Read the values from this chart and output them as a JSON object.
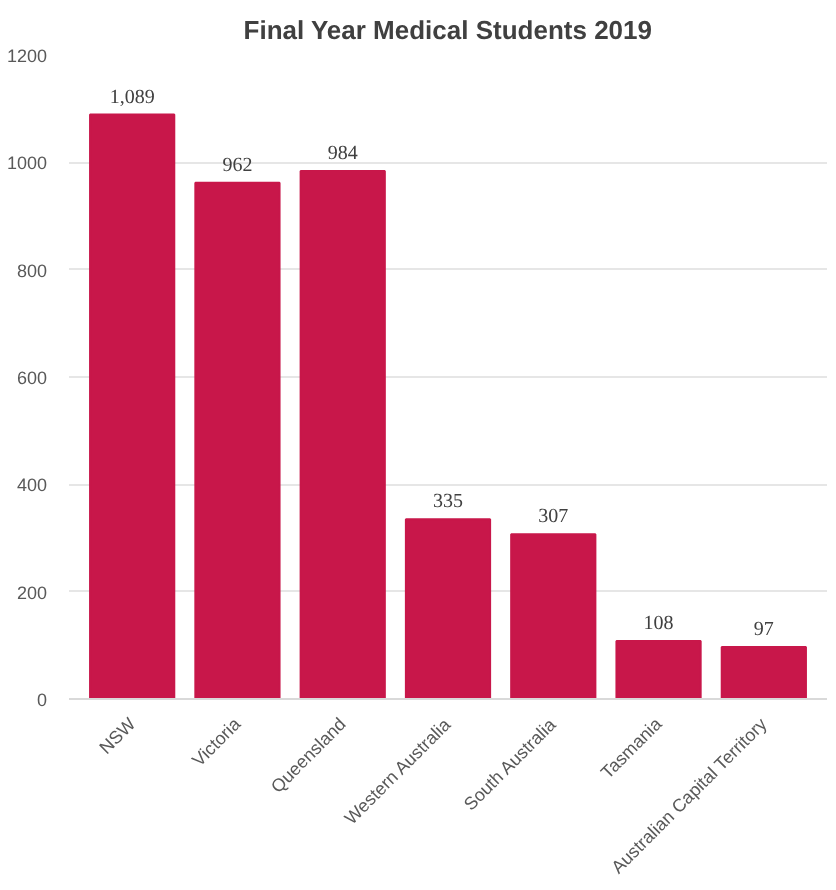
{
  "chart_data": {
    "type": "bar",
    "title": "Final Year Medical Students 2019",
    "categories": [
      "NSW",
      "Victoria",
      "Queensland",
      "Western Australia",
      "South Australia",
      "Tasmania",
      "Australian Capital Territory"
    ],
    "values": [
      1089,
      962,
      984,
      335,
      307,
      108,
      97
    ],
    "value_labels": [
      "1,089",
      "962",
      "984",
      "335",
      "307",
      "108",
      "97"
    ],
    "color": "#c8174a",
    "ylim": [
      0,
      1200
    ],
    "yticks": [
      0,
      200,
      400,
      600,
      800,
      1000,
      1200
    ],
    "grid": "y"
  }
}
